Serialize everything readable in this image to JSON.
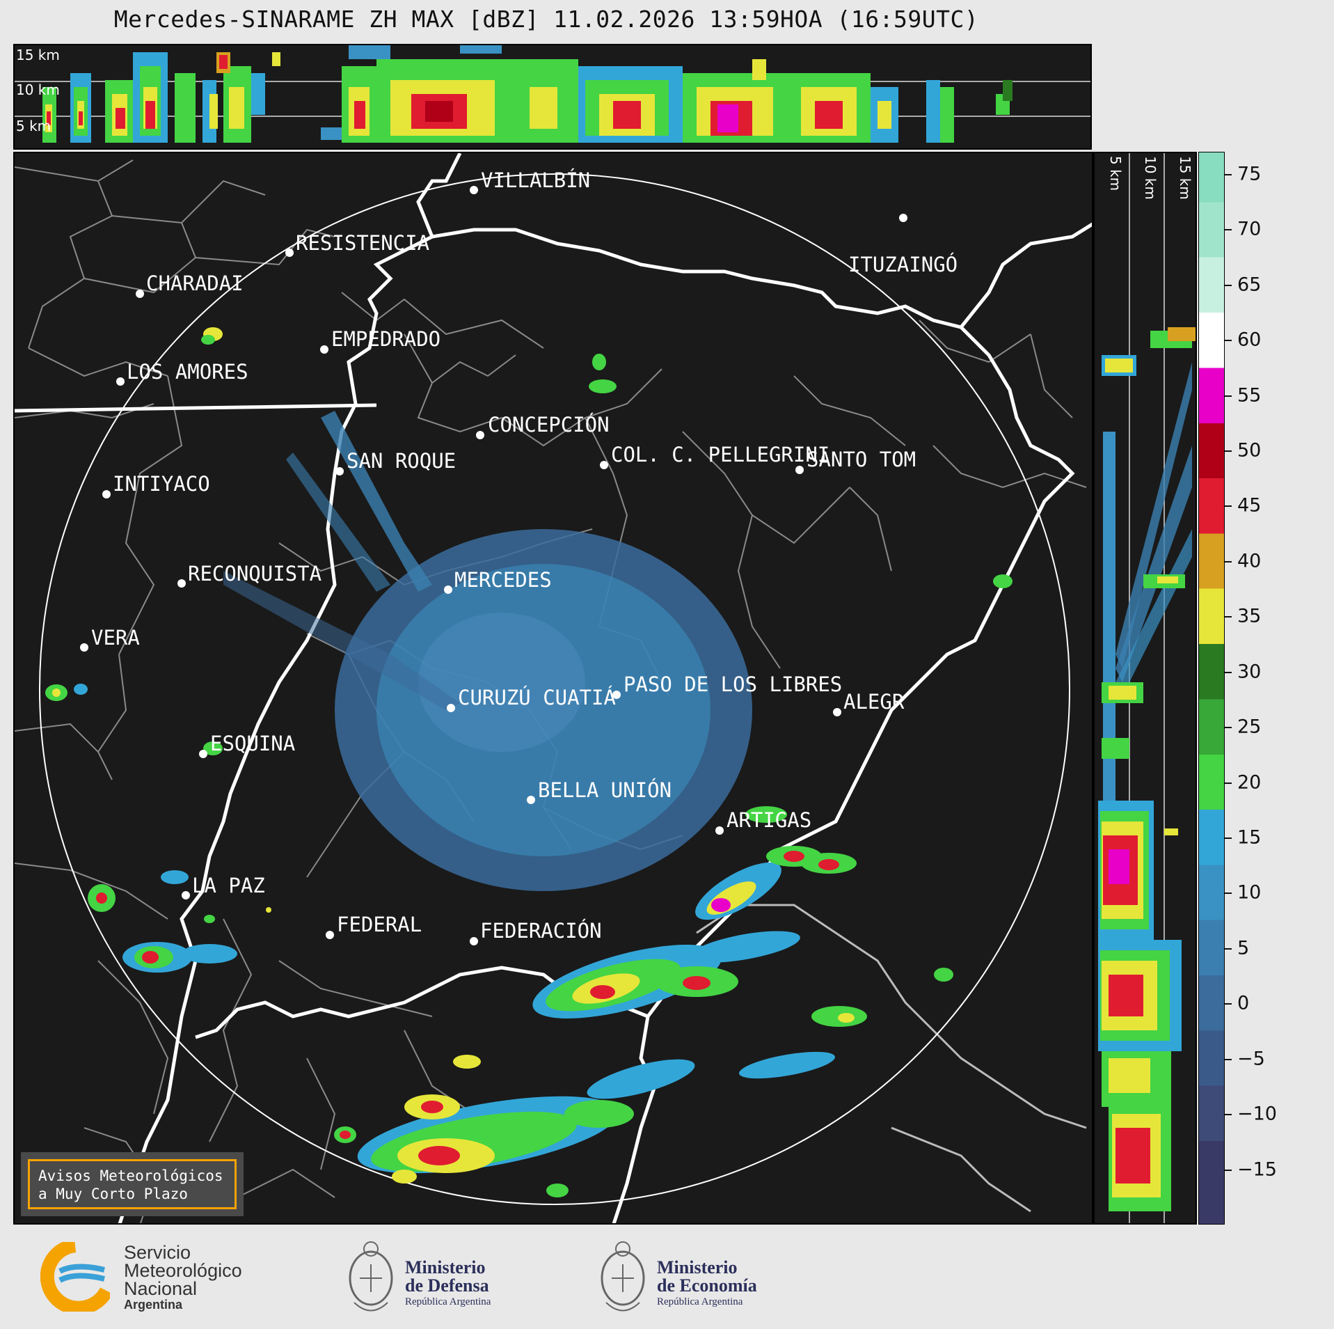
{
  "title": "Mercedes-SINARAME ZH MAX [dBZ] 11.02.2026 13:59HOA (16:59UTC)",
  "cross_section_top": {
    "km_labels": [
      "15 km",
      "10 km",
      "5 km"
    ]
  },
  "cross_section_right": {
    "km_labels": [
      "5 km",
      "10 km",
      "15 km"
    ]
  },
  "map": {
    "cities": [
      {
        "name": "VILLALBÍN"
      },
      {
        "name": "RESISTENCIA"
      },
      {
        "name": "CHARADAI"
      },
      {
        "name": "ITUZAINGÓ"
      },
      {
        "name": "EMPEDRADO"
      },
      {
        "name": "LOS AMORES"
      },
      {
        "name": "CONCEPCIÓN"
      },
      {
        "name": "SAN ROQUE"
      },
      {
        "name": "COL. C. PELLEGRINI"
      },
      {
        "name": "SANTO TOM"
      },
      {
        "name": "INTIYACO"
      },
      {
        "name": "RECONQUISTA"
      },
      {
        "name": "MERCEDES"
      },
      {
        "name": "VERA"
      },
      {
        "name": "PASO DE LOS LIBRES"
      },
      {
        "name": "CURUZÚ CUATIÁ"
      },
      {
        "name": "ALEGR"
      },
      {
        "name": "ESQUINA"
      },
      {
        "name": "BELLA UNIÓN"
      },
      {
        "name": "ARTIGAS"
      },
      {
        "name": "LA PAZ"
      },
      {
        "name": "FEDERAL"
      },
      {
        "name": "FEDERACIÓN"
      }
    ],
    "notice_line1": "Avisos Meteorológicos",
    "notice_line2": "a Muy Corto Plazo"
  },
  "colorbar": {
    "ticks": [
      "75",
      "70",
      "65",
      "60",
      "55",
      "50",
      "45",
      "40",
      "35",
      "30",
      "25",
      "20",
      "15",
      "10",
      "5",
      "0",
      "−5",
      "−10",
      "−15"
    ],
    "colors": {
      "-15": "#3a3a66",
      "-10": "#3e4a78",
      "-5": "#3a5a8a",
      "0": "#3b6c9c",
      "5": "#3b7fb0",
      "10": "#3a92c4",
      "15": "#33a6d8",
      "20": "#44d444",
      "25": "#38a838",
      "30": "#2a7a22",
      "35": "#e6e63a",
      "40": "#d8a020",
      "45": "#e01c30",
      "50": "#b00018",
      "55": "#e800c8",
      "60": "#ffffff",
      "65": "#c8f0e0",
      "70": "#a0e4cc",
      "75": "#88dcc0"
    }
  },
  "footer": {
    "smn_line1": "Servicio",
    "smn_line2": "Meteorológico",
    "smn_line3": "Nacional",
    "smn_line4": "Argentina",
    "defensa_line1": "Ministerio",
    "defensa_line2": "de Defensa",
    "defensa_line3": "República Argentina",
    "economia_line1": "Ministerio",
    "economia_line2": "de Economía",
    "economia_line3": "República Argentina"
  }
}
